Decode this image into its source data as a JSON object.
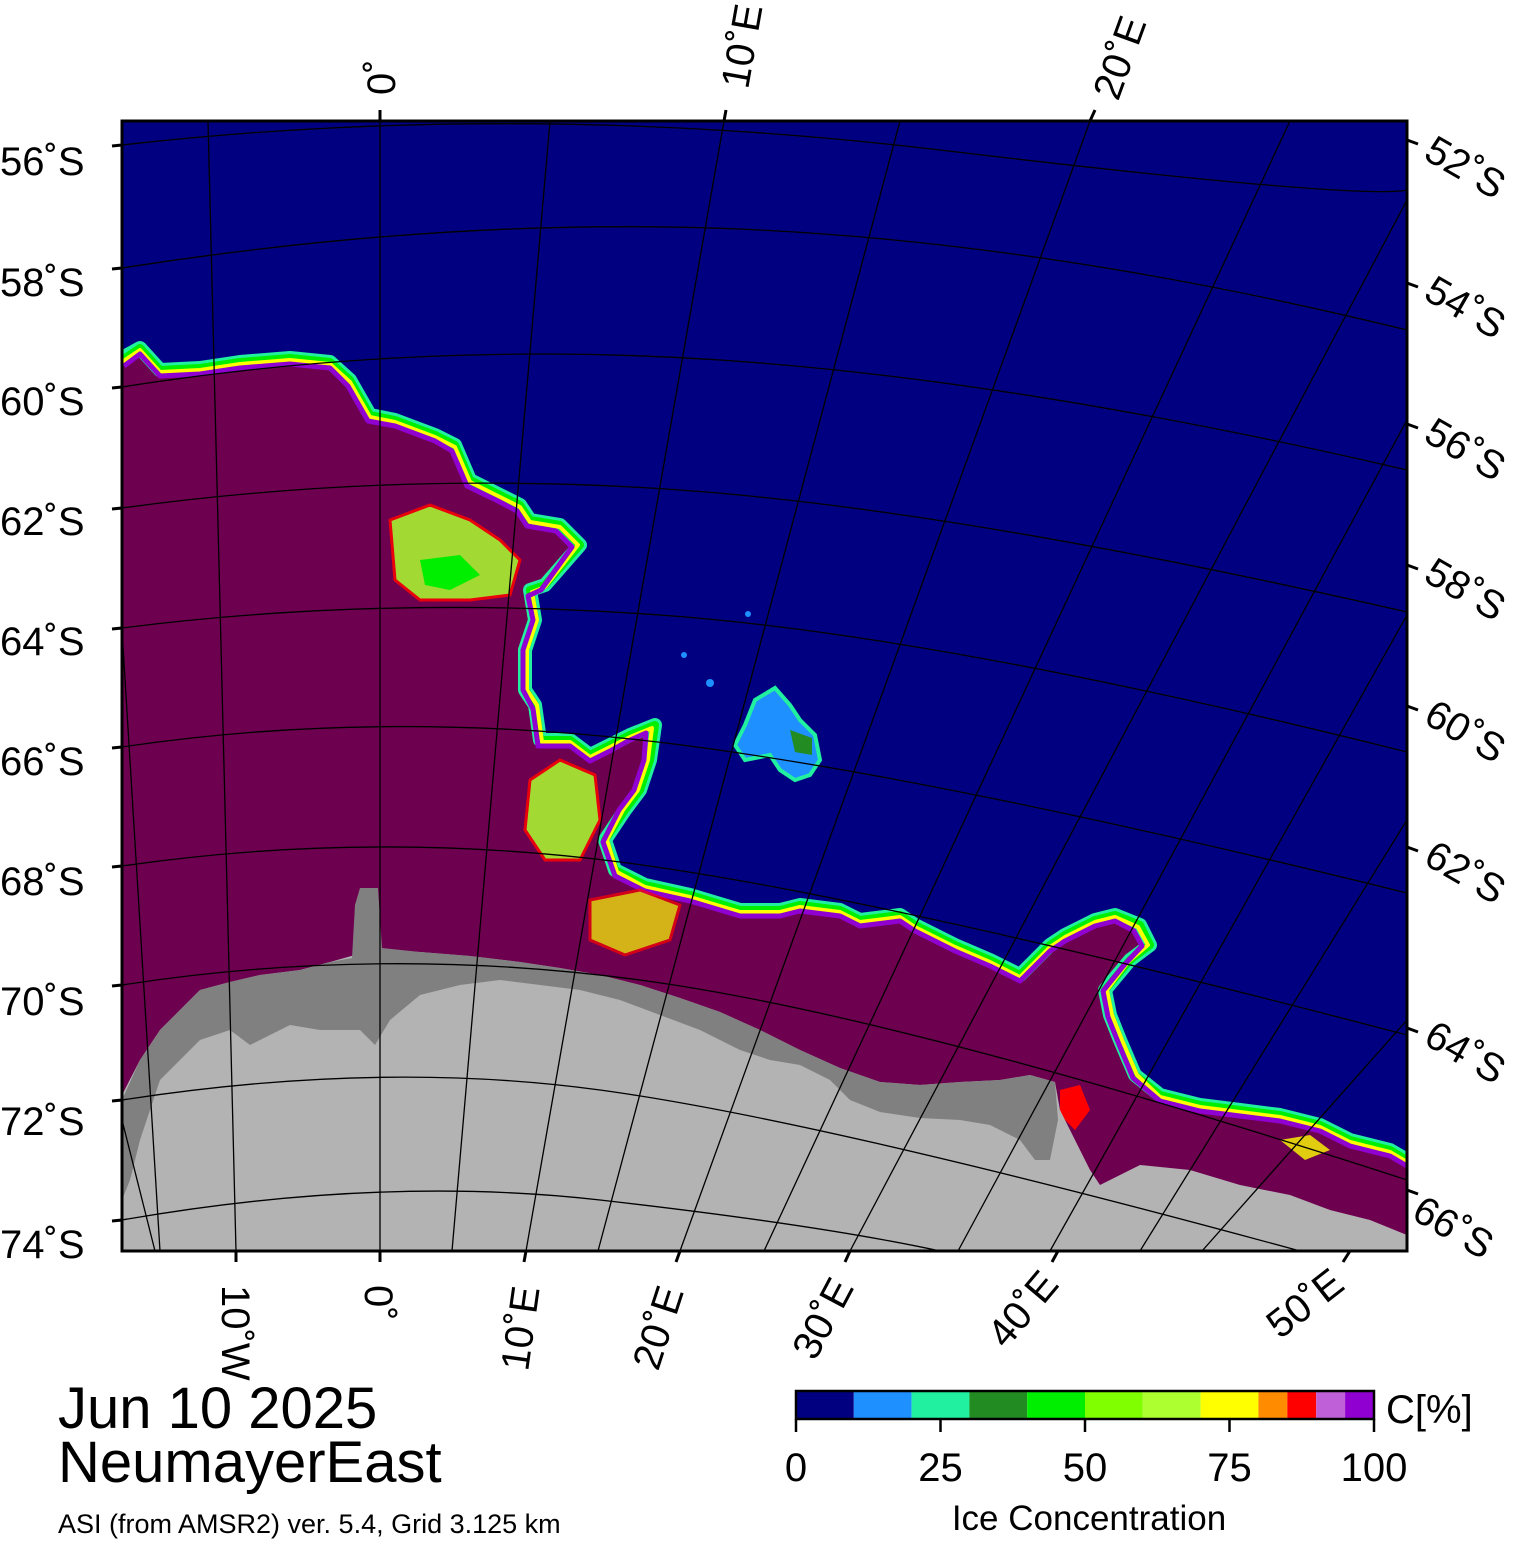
{
  "map": {
    "date": "Jun 10 2025",
    "region": "NeumayerEast",
    "source": "ASI (from AMSR2) ver. 5.4,  Grid 3.125 km",
    "colors": {
      "open_water": "#000080",
      "land": "#b3b3b3",
      "ice_shelf": "#808080",
      "full_ice": "#6e0050",
      "frame": "#000000"
    },
    "top_lon_labels": [
      "0˚",
      "10˚E",
      "20˚E"
    ],
    "left_lat_labels": [
      "56˚S",
      "58˚S",
      "60˚S",
      "62˚S",
      "64˚S",
      "66˚S",
      "68˚S",
      "70˚S",
      "72˚S",
      "74˚S"
    ],
    "right_lat_labels": [
      "52˚S",
      "54˚S",
      "56˚S",
      "58˚S",
      "60˚S",
      "62˚S",
      "64˚S",
      "66˚S"
    ],
    "bottom_lon_labels": [
      "10˚W",
      "0˚",
      "10˚E",
      "20˚E",
      "30˚E",
      "40˚E",
      "50˚E"
    ]
  },
  "colorbar": {
    "unit_label": "C[%]",
    "title": "Ice Concentration",
    "tick_labels": [
      "0",
      "25",
      "50",
      "75",
      "100"
    ],
    "colors": [
      "#000080",
      "#1e90ff",
      "#20f0a0",
      "#228b22",
      "#00ee00",
      "#7fff00",
      "#adff2f",
      "#ffff00",
      "#ff8c00",
      "#ff0000",
      "#c060d8",
      "#9000d0"
    ]
  }
}
